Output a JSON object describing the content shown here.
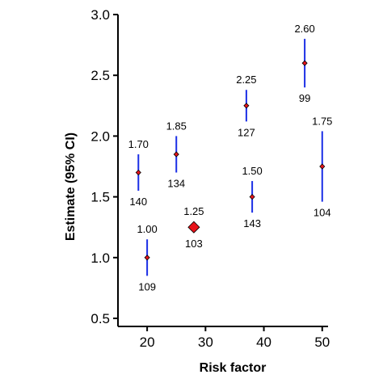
{
  "chart_data": {
    "type": "scatter",
    "xlabel": "Risk factor",
    "ylabel": "Estimate (95% CI)",
    "xlim": [
      15,
      51
    ],
    "ylim": [
      0.5,
      3.0
    ],
    "xticks": [
      20,
      30,
      40,
      50
    ],
    "xtick_labels": [
      "20",
      "30",
      "40",
      "50"
    ],
    "yticks": [
      0.5,
      1.0,
      1.5,
      2.0,
      2.5,
      3.0
    ],
    "ytick_labels": [
      "0.5",
      "1.0",
      "1.5",
      "2.0",
      "2.5",
      "3.0"
    ],
    "grid": false,
    "legend": "none",
    "colors": {
      "marker": "#e8141b",
      "ci_line": "#1a2ee6",
      "axis": "#000000"
    },
    "points": [
      {
        "x": 18.5,
        "y": 1.7,
        "ci_low": 1.55,
        "ci_high": 1.85,
        "label_top": "1.70",
        "label_bottom": "140",
        "size": "small"
      },
      {
        "x": 20.0,
        "y": 1.0,
        "ci_low": 0.85,
        "ci_high": 1.15,
        "label_top": "1.00",
        "label_bottom": "109",
        "size": "small"
      },
      {
        "x": 25.0,
        "y": 1.85,
        "ci_low": 1.7,
        "ci_high": 2.0,
        "label_top": "1.85",
        "label_bottom": "134",
        "size": "small"
      },
      {
        "x": 28.0,
        "y": 1.25,
        "ci_low": 1.25,
        "ci_high": 1.25,
        "label_top": "1.25",
        "label_bottom": "103",
        "size": "large"
      },
      {
        "x": 37.0,
        "y": 2.25,
        "ci_low": 2.12,
        "ci_high": 2.38,
        "label_top": "2.25",
        "label_bottom": "127",
        "size": "small"
      },
      {
        "x": 38.0,
        "y": 1.5,
        "ci_low": 1.37,
        "ci_high": 1.63,
        "label_top": "1.50",
        "label_bottom": "143",
        "size": "small"
      },
      {
        "x": 47.0,
        "y": 2.6,
        "ci_low": 2.4,
        "ci_high": 2.8,
        "label_top": "2.60",
        "label_bottom": "99",
        "size": "small"
      },
      {
        "x": 50.0,
        "y": 1.75,
        "ci_low": 1.46,
        "ci_high": 2.04,
        "label_top": "1.75",
        "label_bottom": "104",
        "size": "small"
      }
    ]
  }
}
